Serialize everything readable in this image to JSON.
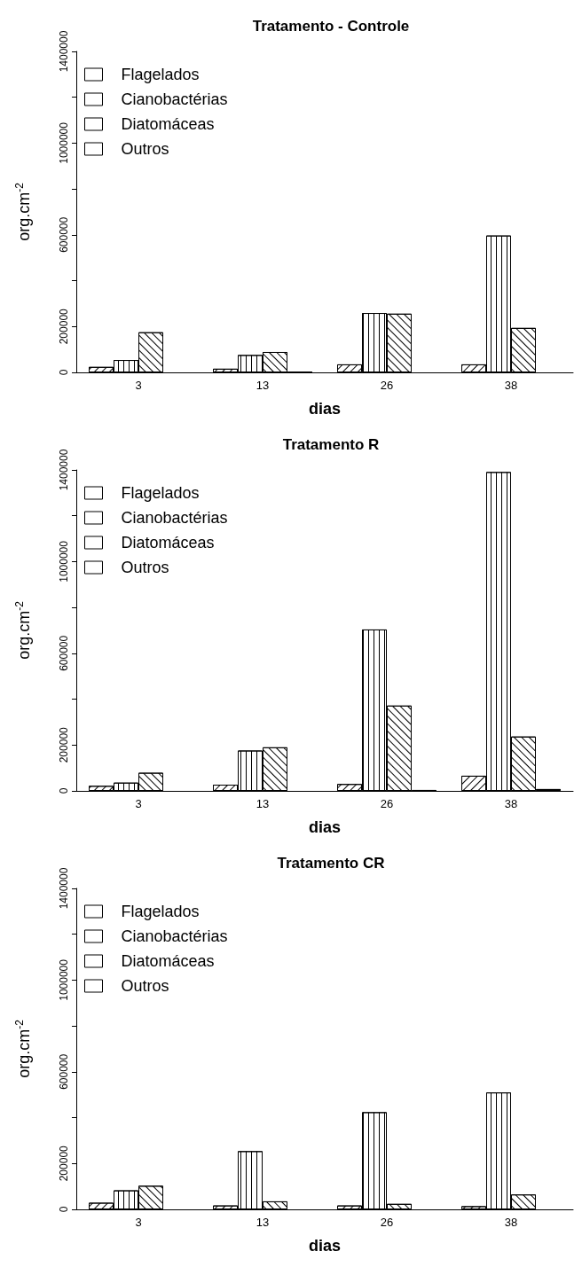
{
  "chart_data": [
    {
      "type": "bar",
      "title": "Tratamento - Controle",
      "xlabel": "dias",
      "ylabel": "org.cm$^{-2}$",
      "categories": [
        "3",
        "13",
        "26",
        "38"
      ],
      "ylim": [
        0,
        1400000
      ],
      "yticks": [
        0,
        200000,
        {
          "value": 400000,
          "label": null
        },
        600000,
        {
          "value": 800000,
          "label": null
        },
        1000000,
        {
          "value": 1200000,
          "label": null
        },
        1400000
      ],
      "legend": "top left",
      "series": [
        {
          "name": "Flagelados",
          "color": "#ffffff",
          "values": [
            24000,
            16000,
            35000,
            35000
          ]
        },
        {
          "name": "Cianobactérias",
          "color": "#ffffff",
          "values": [
            54000,
            76000,
            259000,
            597000
          ]
        },
        {
          "name": "Diatomáceas",
          "color": "#ffffff",
          "values": [
            175000,
            89000,
            256000,
            194000
          ]
        },
        {
          "name": "Outros",
          "color": "#ffffff",
          "values": [
            null,
            3000,
            null,
            null
          ]
        }
      ]
    },
    {
      "type": "bar",
      "title": "Tratamento R",
      "xlabel": "dias",
      "ylabel": "org.cm$^{-2}$",
      "categories": [
        "3",
        "13",
        "26",
        "38"
      ],
      "ylim": [
        0,
        1400000
      ],
      "yticks": [
        0,
        200000,
        {
          "value": 400000,
          "label": null
        },
        600000,
        {
          "value": 800000,
          "label": null
        },
        1000000,
        {
          "value": 1200000,
          "label": null
        },
        1400000
      ],
      "legend": "top left",
      "series": [
        {
          "name": "Flagelados",
          "color": "#ffffff",
          "values": [
            22000,
            27000,
            30000,
            66000
          ]
        },
        {
          "name": "Cianobactérias",
          "color": "#ffffff",
          "values": [
            36000,
            176000,
            704000,
            1391000
          ]
        },
        {
          "name": "Diatomáceas",
          "color": "#ffffff",
          "values": [
            79000,
            190000,
            372000,
            237000
          ]
        },
        {
          "name": "Outros",
          "color": "#ffffff",
          "values": [
            null,
            null,
            4000,
            8000
          ]
        }
      ]
    },
    {
      "type": "bar",
      "title": "Tratamento CR",
      "xlabel": "dias",
      "ylabel": "org.cm$^{-2}$",
      "categories": [
        "3",
        "13",
        "26",
        "38"
      ],
      "ylim": [
        0,
        1400000
      ],
      "yticks": [
        0,
        200000,
        {
          "value": 400000,
          "label": null
        },
        600000,
        {
          "value": 800000,
          "label": null
        },
        1000000,
        {
          "value": 1200000,
          "label": null
        },
        1400000
      ],
      "legend": "top left",
      "series": [
        {
          "name": "Flagelados",
          "color": "#ffffff",
          "values": [
            29000,
            17000,
            17000,
            14000
          ]
        },
        {
          "name": "Cianobactérias",
          "color": "#ffffff",
          "values": [
            83000,
            254000,
            424000,
            510000
          ]
        },
        {
          "name": "Diatomáceas",
          "color": "#ffffff",
          "values": [
            103000,
            35000,
            24000,
            65000
          ]
        },
        {
          "name": "Outros",
          "color": "#ffffff",
          "values": [
            null,
            null,
            null,
            null
          ]
        }
      ]
    }
  ]
}
